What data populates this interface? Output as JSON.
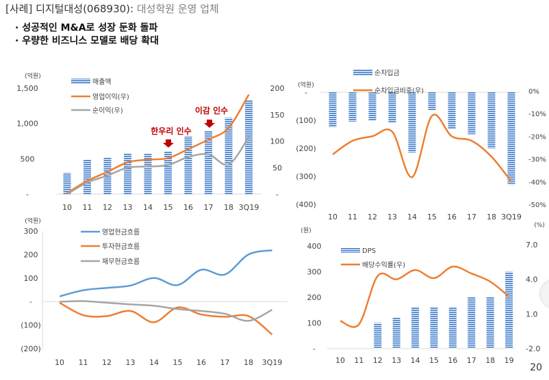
{
  "header": {
    "title": "[사례] 디지털대성(068930):",
    "subtitle": "대성학원 운영 업체"
  },
  "bullets": [
    "· 성공적인 M&A로 성장 둔화 돌파",
    "· 우량한 비즈니스 모델로 배당 확대"
  ],
  "page_number": "20",
  "colors": {
    "bar": "#5b8fd1",
    "orange": "#ed7d31",
    "gray": "#a5a5a5",
    "blue_line": "#5b9bd5",
    "annotation": "#c00000"
  },
  "chart_data": [
    {
      "id": "revenue",
      "type": "bar+line",
      "categories": [
        "10",
        "11",
        "12",
        "13",
        "14",
        "15",
        "16",
        "17",
        "18",
        "3Q19"
      ],
      "unit_label": "(억원)",
      "left_ticks": [
        "1,500",
        "1,000",
        "500",
        "-"
      ],
      "right_ticks": [
        "200",
        "150",
        "100",
        "50",
        "-"
      ],
      "ylim_left": [
        0,
        1500
      ],
      "ylim_right": [
        0,
        200
      ],
      "series": [
        {
          "name": "매출액",
          "kind": "bar",
          "axis": "left",
          "values": [
            300,
            490,
            520,
            580,
            570,
            600,
            820,
            900,
            1080,
            1330
          ]
        },
        {
          "name": "영업이익(우)",
          "kind": "line",
          "axis": "right",
          "values": [
            2,
            25,
            42,
            60,
            65,
            68,
            85,
            103,
            125,
            188
          ]
        },
        {
          "name": "순이익(우)",
          "kind": "line",
          "axis": "right",
          "values": [
            0,
            22,
            35,
            50,
            52,
            55,
            70,
            75,
            56,
            108
          ]
        }
      ],
      "annotations": [
        "한우리 인수",
        "이감 인수"
      ]
    },
    {
      "id": "net_cash",
      "type": "bar+line",
      "categories": [
        "10",
        "11",
        "12",
        "13",
        "14",
        "15",
        "16",
        "17",
        "18",
        "3Q19"
      ],
      "unit_label": "(억원)",
      "left_ticks": [
        "-",
        "(100)",
        "(200)",
        "(300)",
        "(400)"
      ],
      "right_ticks": [
        "0%",
        "-10%",
        "-20%",
        "-30%",
        "-40%",
        "-50%"
      ],
      "ylim_left": [
        -400,
        0
      ],
      "ylim_right": [
        -50,
        0
      ],
      "series": [
        {
          "name": "순차입금",
          "kind": "bar",
          "axis": "left",
          "values": [
            -125,
            -105,
            -100,
            -110,
            -215,
            -65,
            -130,
            -150,
            -200,
            -330
          ]
        },
        {
          "name": "순차입금비중(우)",
          "kind": "line",
          "axis": "right",
          "values": [
            -28,
            -22,
            -20,
            -18,
            -38,
            -11,
            -20,
            -22,
            -29,
            -40
          ]
        }
      ]
    },
    {
      "id": "cash_flow",
      "type": "line",
      "categories": [
        "10",
        "11",
        "12",
        "13",
        "14",
        "15",
        "16",
        "17",
        "18",
        "3Q19"
      ],
      "unit_label": "(억원)",
      "left_ticks": [
        "300",
        "200",
        "100",
        "-",
        "(100)",
        "(200)"
      ],
      "ylim": [
        -200,
        300
      ],
      "series": [
        {
          "name": "영업현금흐름",
          "values": [
            22,
            48,
            58,
            68,
            100,
            70,
            135,
            115,
            200,
            218
          ]
        },
        {
          "name": "투자현금흐름",
          "values": [
            -5,
            -58,
            -62,
            -40,
            -88,
            -25,
            -55,
            -65,
            -62,
            -140
          ]
        },
        {
          "name": "재무현금흐름",
          "values": [
            -1,
            2,
            -5,
            -12,
            -18,
            -32,
            -40,
            -52,
            -82,
            -35
          ]
        }
      ]
    },
    {
      "id": "dividend",
      "type": "bar+line",
      "categories": [
        "10",
        "11",
        "12",
        "13",
        "14",
        "15",
        "16",
        "17",
        "18",
        "19"
      ],
      "unit_label": "(원)",
      "right_unit_label": "(%)",
      "left_ticks": [
        "400",
        "300",
        "200",
        "100",
        "-"
      ],
      "right_ticks": [
        "7.0",
        "4.0",
        "1.0",
        "-2.0"
      ],
      "ylim_left": [
        0,
        400
      ],
      "ylim_right": [
        -2,
        7
      ],
      "series": [
        {
          "name": "DPS",
          "kind": "bar",
          "axis": "left",
          "values": [
            0,
            0,
            100,
            120,
            160,
            160,
            160,
            200,
            200,
            300
          ]
        },
        {
          "name": "배당수익률(우)",
          "kind": "line",
          "axis": "right",
          "values": [
            0.4,
            0.1,
            4.3,
            4.0,
            4.8,
            4.1,
            5.1,
            4.5,
            3.8,
            2.5
          ]
        }
      ]
    }
  ]
}
